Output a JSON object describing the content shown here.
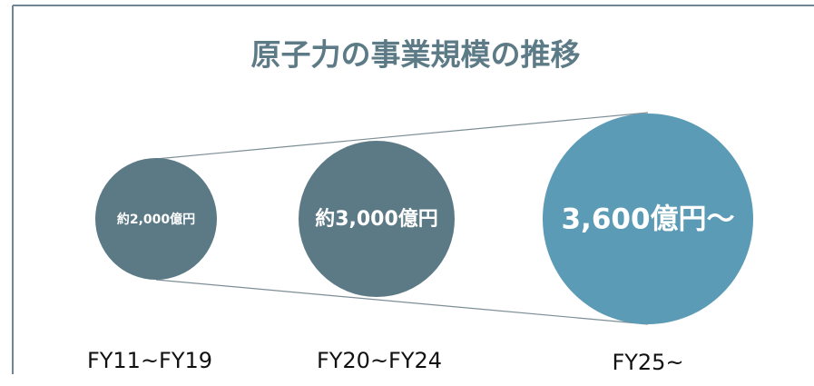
{
  "title": "原子力の事業規模の推移",
  "nodes": [
    {
      "label": "約2,000億円",
      "period": "FY11~FY19"
    },
    {
      "label": "約3,000億円",
      "period": "FY20~FY24"
    },
    {
      "label": "3,600億円～",
      "period": "FY25~"
    }
  ]
}
